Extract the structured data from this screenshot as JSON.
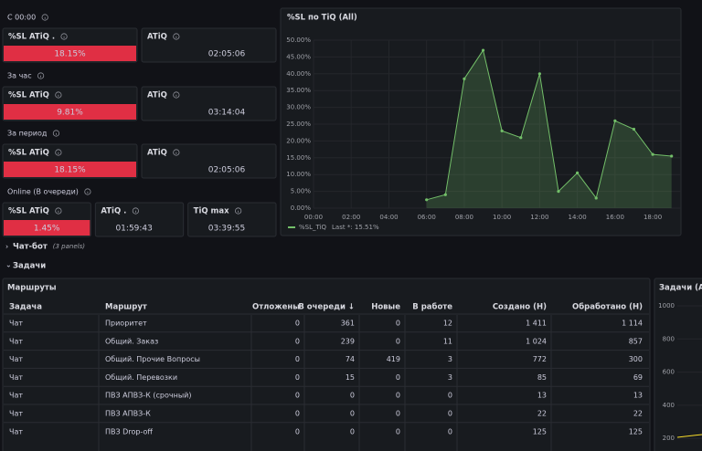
{
  "groups": [
    {
      "label": "C 00:00",
      "panels": [
        {
          "title": "%SL ATiQ .",
          "value": "18.15%",
          "color": "#e02f44"
        },
        {
          "title": "ATiQ",
          "value": "02:05:06"
        }
      ]
    },
    {
      "label": "За час",
      "panels": [
        {
          "title": "%SL ATiQ",
          "value": "9.81%",
          "color": "#e02f44"
        },
        {
          "title": "ATiQ",
          "value": "03:14:04"
        }
      ]
    },
    {
      "label": "За период",
      "panels": [
        {
          "title": "%SL ATiQ",
          "value": "18.15%",
          "color": "#e02f44"
        },
        {
          "title": "ATiQ",
          "value": "02:05:06"
        }
      ]
    },
    {
      "label": "Online (В очереди)",
      "panels": [
        {
          "title": "%SL ATiQ",
          "value": "1.45%",
          "color": "#e02f44"
        },
        {
          "title": "ATiQ .",
          "value": "01:59:43"
        },
        {
          "title": "TiQ max",
          "value": "03:39:55"
        }
      ]
    }
  ],
  "chart_data": {
    "type": "area",
    "title": "%SL по TiQ (All)",
    "x": [
      6,
      7,
      8,
      9,
      10,
      11,
      12,
      13,
      14,
      15,
      16,
      17,
      18,
      19
    ],
    "series": [
      {
        "name": "%SL_TiQ",
        "color": "#73bf69",
        "values": [
          2.5,
          4,
          38.5,
          47,
          23,
          21,
          40,
          5,
          10.5,
          3,
          26,
          23.5,
          16,
          15.5
        ]
      }
    ],
    "legend_stat": "Last *: 15.51%",
    "xlim": [
      0,
      19.5
    ],
    "xticks": [
      {
        "value": 0,
        "label": "00:00"
      },
      {
        "value": 2,
        "label": "02:00"
      },
      {
        "value": 4,
        "label": "04:00"
      },
      {
        "value": 6,
        "label": "06:00"
      },
      {
        "value": 8,
        "label": "08:00"
      },
      {
        "value": 10,
        "label": "10:00"
      },
      {
        "value": 12,
        "label": "12:00"
      },
      {
        "value": 14,
        "label": "14:00"
      },
      {
        "value": 16,
        "label": "16:00"
      },
      {
        "value": 18,
        "label": "18:00"
      }
    ],
    "ylim": [
      0,
      50
    ],
    "yticks": [
      {
        "value": 0,
        "label": "0.00%"
      },
      {
        "value": 5,
        "label": "5.00%"
      },
      {
        "value": 10,
        "label": "10.00%"
      },
      {
        "value": 15,
        "label": "15.00%"
      },
      {
        "value": 20,
        "label": "20.00%"
      },
      {
        "value": 25,
        "label": "25.00%"
      },
      {
        "value": 30,
        "label": "30.00%"
      },
      {
        "value": 35,
        "label": "35.00%"
      },
      {
        "value": 40,
        "label": "40.00%"
      },
      {
        "value": 45,
        "label": "45.00%"
      },
      {
        "value": 50,
        "label": "50.00%"
      }
    ],
    "grid": true
  },
  "rows": [
    {
      "title": "Чат-бот",
      "note": "(3 panels)"
    },
    {
      "title": "Задачи"
    }
  ],
  "table": {
    "title": "Маршруты",
    "columns": [
      "Задача",
      "Маршрут",
      "Отложены",
      "В очереди ↓",
      "Новые",
      "В работе",
      "Создано (Н)",
      "Обработано (Н)"
    ],
    "rows": [
      [
        "Чат",
        "Приоритет",
        "0",
        "361",
        "0",
        "12",
        "1 411",
        "1 114"
      ],
      [
        "Чат",
        "Общий. Заказ",
        "0",
        "239",
        "0",
        "11",
        "1 024",
        "857"
      ],
      [
        "Чат",
        "Общий. Прочие Вопросы",
        "0",
        "74",
        "419",
        "3",
        "772",
        "300"
      ],
      [
        "Чат",
        "Общий. Перевозки",
        "0",
        "15",
        "0",
        "3",
        "85",
        "69"
      ],
      [
        "Чат",
        "ПВЗ АПВЗ-К (срочный)",
        "0",
        "0",
        "0",
        "0",
        "13",
        "13"
      ],
      [
        "Чат",
        "ПВЗ АПВЗ-К",
        "0",
        "0",
        "0",
        "0",
        "22",
        "22"
      ],
      [
        "Чат",
        "ПВЗ Drop-off",
        "0",
        "0",
        "0",
        "0",
        "125",
        "125"
      ]
    ]
  },
  "side_panel": {
    "title": "Задачи (All)",
    "yticks": [
      1000,
      800,
      600,
      400,
      200
    ]
  }
}
